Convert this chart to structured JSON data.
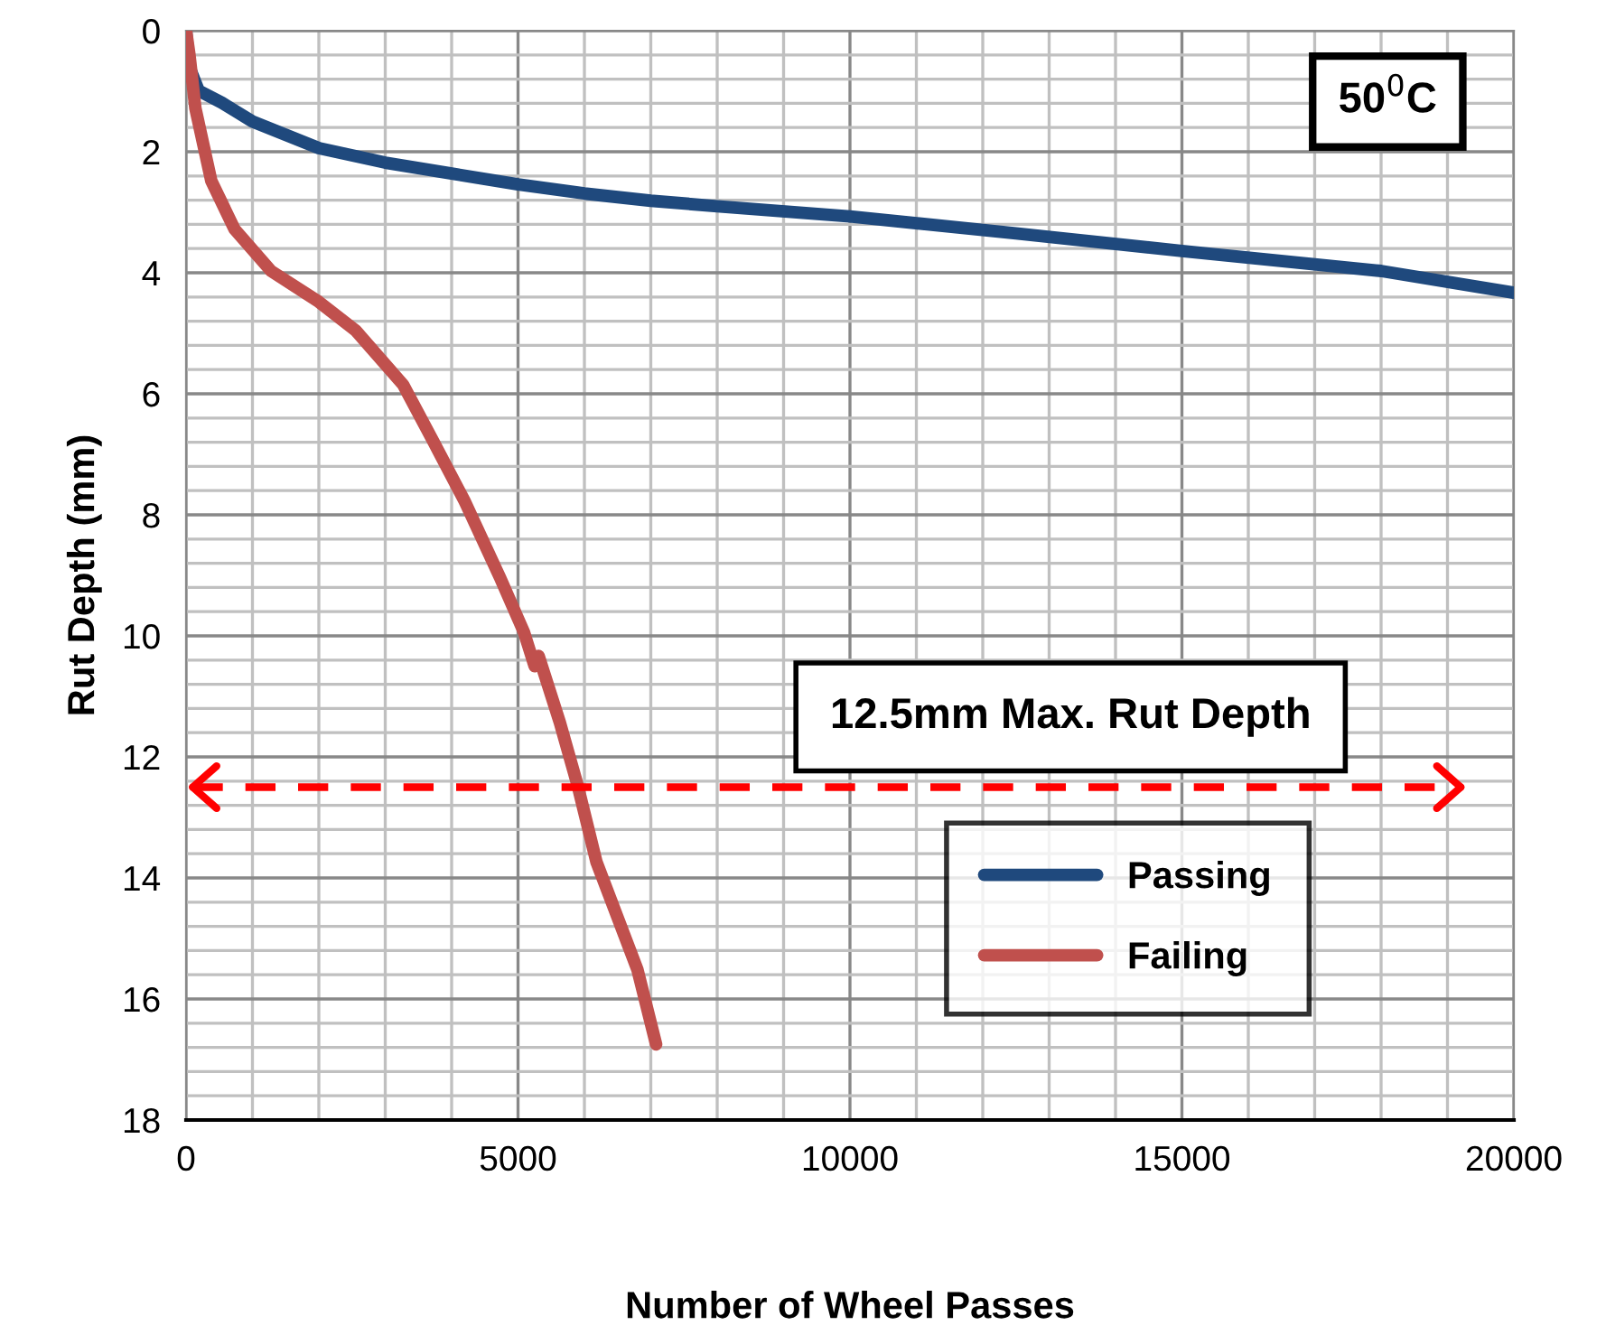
{
  "chart_data": {
    "type": "line",
    "xlabel": "Number of Wheel Passes",
    "ylabel": "Rut Depth (mm)",
    "xlim": [
      0,
      20000
    ],
    "xticks": [
      0,
      5000,
      10000,
      15000,
      20000
    ],
    "ylim": [
      18,
      0
    ],
    "yticks": [
      0,
      2,
      4,
      6,
      8,
      10,
      12,
      14,
      16,
      18
    ],
    "grid": true,
    "legend": "bottom right",
    "line_style": "solid",
    "marker": "none",
    "series": [
      {
        "name": "Passing",
        "color": "#1f497d",
        "x": [
          0,
          50,
          190,
          540,
          1000,
          2000,
          3000,
          4000,
          5000,
          6000,
          7000,
          8000,
          10000,
          12500,
          15000,
          18000,
          20000
        ],
        "values": [
          0,
          0.6,
          0.99,
          1.19,
          1.5,
          1.94,
          2.18,
          2.36,
          2.54,
          2.69,
          2.81,
          2.9,
          3.07,
          3.35,
          3.64,
          3.97,
          4.33
        ]
      },
      {
        "name": "Failing",
        "color": "#c0504d",
        "x": [
          0,
          50,
          140,
          380,
          730,
          1280,
          2000,
          2560,
          3270,
          3730,
          4190,
          4730,
          5090,
          5250,
          5310,
          5630,
          5900,
          6180,
          6800,
          7080
        ],
        "values": [
          0,
          0.39,
          1.28,
          2.48,
          3.28,
          3.97,
          4.48,
          4.96,
          5.85,
          6.8,
          7.76,
          9.04,
          9.94,
          10.5,
          10.33,
          11.43,
          12.48,
          13.73,
          15.52,
          16.75
        ]
      }
    ],
    "ref_lines": [
      {
        "axis": "y",
        "value": 12.5,
        "label": "12.5mm Max. Rut Depth",
        "color": "#ff0000",
        "line_style": "dashed"
      }
    ],
    "annotations": [
      "50$^{0}$C"
    ]
  }
}
